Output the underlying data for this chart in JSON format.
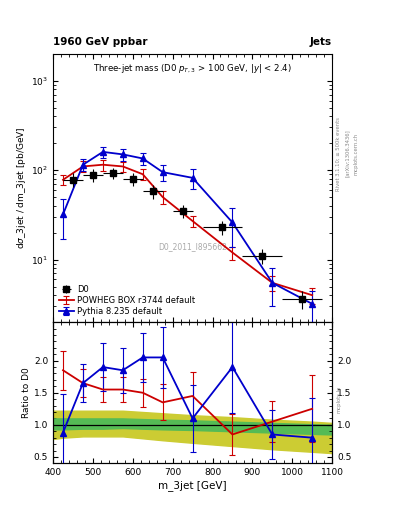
{
  "title_left": "1960 GeV ppbar",
  "title_right": "Jets",
  "plot_title": "Three-jet mass (D0 $p_{T,3}$ > 100 GeV, $|y|$ < 2.4)",
  "ylabel_main": "dσ_3jet / dm_3jet [pb/GeV]",
  "ylabel_ratio": "Ratio to D0",
  "xlabel": "m_3jet [GeV]",
  "watermark": "D0_2011_I895662",
  "rivet_label": "Rivet 3.1.10; ≥ 500k events",
  "arxiv_label": "[arXiv:1306.3436]",
  "mcplots_label": "mcplots.cern.ch",
  "d0_x": [
    450,
    500,
    550,
    600,
    650,
    725,
    825,
    925,
    1025
  ],
  "d0_y": [
    78,
    88,
    93,
    80,
    58,
    35,
    23,
    11,
    3.6
  ],
  "d0_xerr": [
    25,
    25,
    25,
    25,
    25,
    25,
    50,
    50,
    50
  ],
  "d0_yerr_lo": [
    14,
    14,
    14,
    13,
    10,
    6,
    4,
    2,
    0.8
  ],
  "d0_yerr_hi": [
    14,
    14,
    14,
    13,
    10,
    6,
    4,
    2,
    0.8
  ],
  "powheg_x": [
    425,
    475,
    525,
    575,
    625,
    675,
    750,
    850,
    950,
    1050
  ],
  "powheg_y": [
    78,
    110,
    115,
    110,
    90,
    50,
    27,
    12,
    5.5,
    4.0
  ],
  "powheg_yerr_lo": [
    10,
    15,
    16,
    14,
    12,
    8,
    4,
    2,
    1.0,
    0.8
  ],
  "powheg_yerr_hi": [
    10,
    15,
    16,
    14,
    12,
    8,
    4,
    2,
    1.0,
    0.8
  ],
  "pythia_x": [
    425,
    475,
    525,
    575,
    625,
    675,
    750,
    850,
    950,
    1050
  ],
  "pythia_y": [
    32,
    115,
    160,
    150,
    135,
    95,
    82,
    26,
    5.5,
    3.2
  ],
  "pythia_yerr_lo": [
    15,
    18,
    22,
    22,
    22,
    20,
    20,
    12,
    2.5,
    1.2
  ],
  "pythia_yerr_hi": [
    15,
    18,
    22,
    22,
    22,
    20,
    20,
    12,
    2.5,
    1.2
  ],
  "ratio_powheg_x": [
    425,
    475,
    525,
    575,
    625,
    675,
    750,
    850,
    950,
    1050
  ],
  "ratio_powheg_y": [
    1.85,
    1.65,
    1.55,
    1.55,
    1.5,
    1.35,
    1.45,
    0.85,
    1.05,
    1.25
  ],
  "ratio_powheg_yerr": [
    0.3,
    0.22,
    0.2,
    0.2,
    0.22,
    0.28,
    0.38,
    0.32,
    0.32,
    0.52
  ],
  "ratio_pythia_x": [
    425,
    475,
    525,
    575,
    625,
    675,
    750,
    850,
    950,
    1050
  ],
  "ratio_pythia_y": [
    0.88,
    1.65,
    1.9,
    1.85,
    2.05,
    2.05,
    1.1,
    1.9,
    0.85,
    0.8
  ],
  "ratio_pythia_yerr": [
    0.6,
    0.3,
    0.38,
    0.35,
    0.38,
    0.48,
    0.52,
    0.72,
    0.38,
    0.62
  ],
  "band_x": [
    400,
    425,
    475,
    525,
    575,
    625,
    675,
    750,
    850,
    950,
    1050,
    1100
  ],
  "band_green_lo": [
    0.93,
    0.93,
    0.94,
    0.94,
    0.95,
    0.94,
    0.93,
    0.92,
    0.9,
    0.88,
    0.86,
    0.85
  ],
  "band_green_hi": [
    1.1,
    1.1,
    1.1,
    1.1,
    1.1,
    1.09,
    1.08,
    1.07,
    1.05,
    1.03,
    1.01,
    1.0
  ],
  "band_yellow_lo": [
    0.78,
    0.8,
    0.82,
    0.82,
    0.82,
    0.79,
    0.76,
    0.72,
    0.67,
    0.62,
    0.58,
    0.56
  ],
  "band_yellow_hi": [
    1.22,
    1.22,
    1.22,
    1.22,
    1.22,
    1.2,
    1.18,
    1.15,
    1.12,
    1.08,
    1.05,
    1.03
  ],
  "d0_color": "black",
  "powheg_color": "#cc0000",
  "pythia_color": "#0000cc",
  "green_band_color": "#55bb55",
  "yellow_band_color": "#cccc33",
  "xlim": [
    400,
    1100
  ],
  "ylim_main_lo": 2,
  "ylim_main_hi": 2000,
  "ylim_ratio": [
    0.4,
    2.6
  ],
  "ratio_yticks": [
    0.5,
    1.0,
    1.5,
    2.0
  ]
}
